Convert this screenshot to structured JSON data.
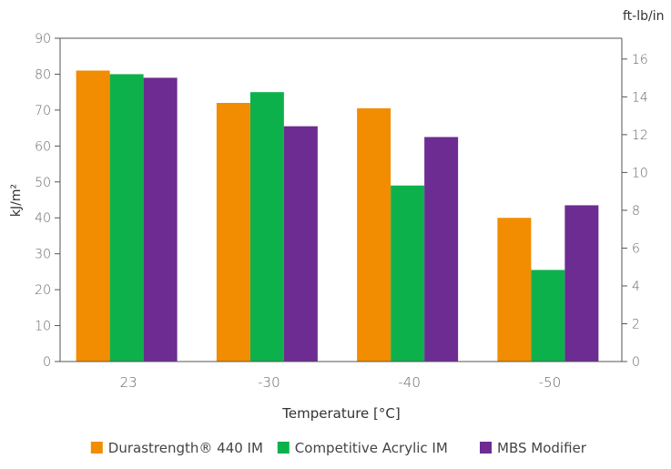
{
  "chart_data": {
    "type": "bar",
    "xlabel": "Temperature [°C]",
    "ylabel": "kJ/m²",
    "y2label": "ft-lb/in",
    "ylim": [
      0,
      90
    ],
    "y2lim": [
      0,
      17.1
    ],
    "yticks": [
      "0",
      "10",
      "20",
      "30",
      "40",
      "50",
      "60",
      "70",
      "80",
      "90"
    ],
    "y2ticks": [
      "0",
      "2",
      "4",
      "6",
      "8",
      "10",
      "12",
      "14",
      "16"
    ],
    "categories": [
      "23",
      "-30",
      "-40",
      "-50"
    ],
    "series": [
      {
        "name": "Durastrength® 440 IM",
        "color": "#f28c00",
        "values": [
          81,
          72,
          70.5,
          40
        ]
      },
      {
        "name": "Competitive Acrylic IM",
        "color": "#0db14b",
        "values": [
          80,
          75,
          49,
          25.5
        ]
      },
      {
        "name": "MBS Modifier",
        "color": "#6c2c91",
        "values": [
          79,
          65.5,
          62.5,
          43.5
        ]
      }
    ],
    "grid": false,
    "legend_position": "bottom"
  }
}
